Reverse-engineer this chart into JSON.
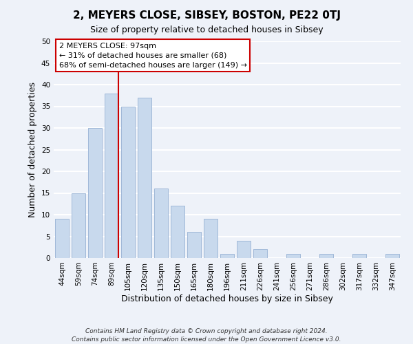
{
  "title": "2, MEYERS CLOSE, SIBSEY, BOSTON, PE22 0TJ",
  "subtitle": "Size of property relative to detached houses in Sibsey",
  "xlabel": "Distribution of detached houses by size in Sibsey",
  "ylabel": "Number of detached properties",
  "bar_color": "#c8d9ed",
  "bar_edge_color": "#a0b8d8",
  "categories": [
    "44sqm",
    "59sqm",
    "74sqm",
    "89sqm",
    "105sqm",
    "120sqm",
    "135sqm",
    "150sqm",
    "165sqm",
    "180sqm",
    "196sqm",
    "211sqm",
    "226sqm",
    "241sqm",
    "256sqm",
    "271sqm",
    "286sqm",
    "302sqm",
    "317sqm",
    "332sqm",
    "347sqm"
  ],
  "values": [
    9,
    15,
    30,
    38,
    35,
    37,
    16,
    12,
    6,
    9,
    1,
    4,
    2,
    0,
    1,
    0,
    1,
    0,
    1,
    0,
    1
  ],
  "ylim": [
    0,
    50
  ],
  "yticks": [
    0,
    5,
    10,
    15,
    20,
    25,
    30,
    35,
    40,
    45,
    50
  ],
  "property_line_color": "#cc0000",
  "annotation_title": "2 MEYERS CLOSE: 97sqm",
  "annotation_line1": "← 31% of detached houses are smaller (68)",
  "annotation_line2": "68% of semi-detached houses are larger (149) →",
  "annotation_box_color": "#ffffff",
  "annotation_box_edge": "#cc0000",
  "footer_line1": "Contains HM Land Registry data © Crown copyright and database right 2024.",
  "footer_line2": "Contains public sector information licensed under the Open Government Licence v3.0.",
  "background_color": "#eef2f9",
  "grid_color": "#ffffff",
  "title_fontsize": 11,
  "subtitle_fontsize": 9,
  "axis_label_fontsize": 9,
  "tick_fontsize": 7.5,
  "annotation_fontsize": 8,
  "footer_fontsize": 6.5
}
